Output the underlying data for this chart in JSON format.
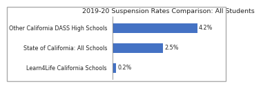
{
  "title": "2019-20 Suspension Rates Comparison: All Students",
  "categories": [
    "Learn4Life California Schools",
    "State of California: All Schools",
    "Other California DASS High Schools"
  ],
  "values": [
    0.2,
    2.5,
    4.2
  ],
  "bar_color": "#4472C4",
  "label_color": "#222222",
  "background_color": "#ffffff",
  "border_color": "#aaaaaa",
  "title_fontsize": 6.8,
  "label_fontsize": 5.8,
  "value_fontsize": 5.8,
  "xlim": [
    0,
    5.5
  ],
  "bar_height": 0.5
}
